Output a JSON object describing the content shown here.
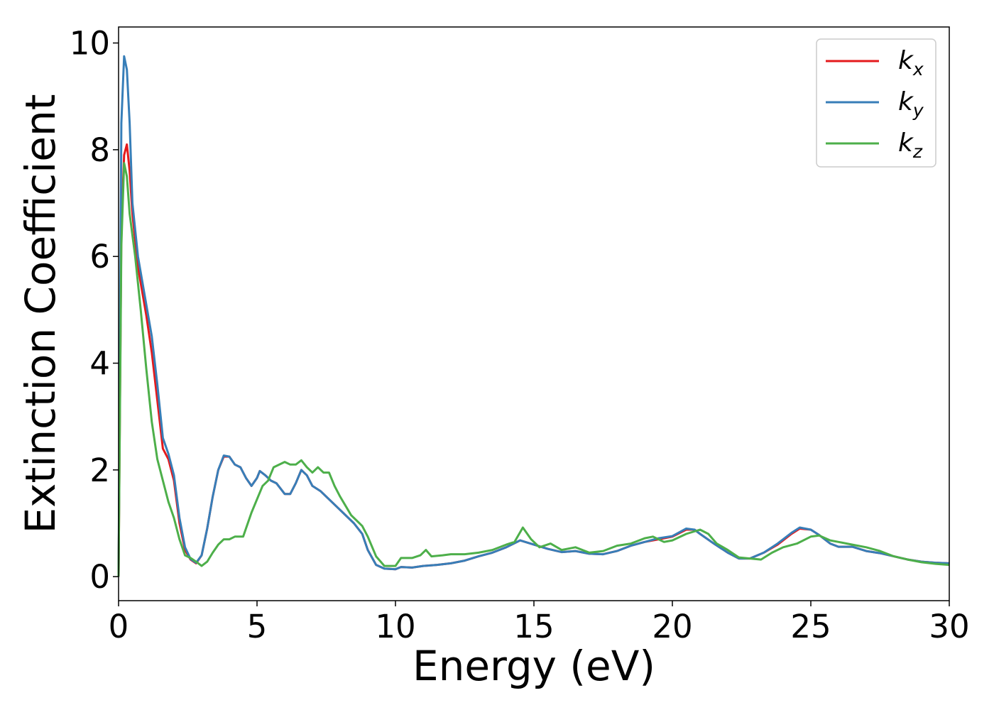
{
  "chart_data": {
    "type": "line",
    "xlabel": "Energy (eV)",
    "ylabel": "Extinction Coefficient",
    "xlim": [
      0,
      30
    ],
    "ylim": [
      -0.45,
      10.3
    ],
    "xticks": [
      0,
      5,
      10,
      15,
      20,
      25,
      30
    ],
    "yticks": [
      0,
      2,
      4,
      6,
      8,
      10
    ],
    "grid": false,
    "legend_position": "top-right",
    "series": [
      {
        "name": "k_x",
        "base": "k",
        "sub": "x",
        "color": "#e41a1c",
        "points": [
          [
            0,
            0
          ],
          [
            0.1,
            6.5
          ],
          [
            0.2,
            7.9
          ],
          [
            0.3,
            8.1
          ],
          [
            0.4,
            7.6
          ],
          [
            0.5,
            6.8
          ],
          [
            0.7,
            5.8
          ],
          [
            1.0,
            4.9
          ],
          [
            1.2,
            4.2
          ],
          [
            1.4,
            3.3
          ],
          [
            1.6,
            2.4
          ],
          [
            1.8,
            2.2
          ],
          [
            2.0,
            1.8
          ],
          [
            2.2,
            1.0
          ],
          [
            2.4,
            0.5
          ],
          [
            2.6,
            0.32
          ],
          [
            2.8,
            0.25
          ],
          [
            3.0,
            0.4
          ],
          [
            3.2,
            0.9
          ],
          [
            3.4,
            1.5
          ],
          [
            3.6,
            2.0
          ],
          [
            3.8,
            2.25
          ],
          [
            4.0,
            2.25
          ],
          [
            4.2,
            2.1
          ],
          [
            4.4,
            2.05
          ],
          [
            4.6,
            1.85
          ],
          [
            4.8,
            1.7
          ],
          [
            5.0,
            1.85
          ],
          [
            5.1,
            1.98
          ],
          [
            5.3,
            1.9
          ],
          [
            5.5,
            1.8
          ],
          [
            5.7,
            1.75
          ],
          [
            6.0,
            1.55
          ],
          [
            6.2,
            1.55
          ],
          [
            6.4,
            1.75
          ],
          [
            6.6,
            2.0
          ],
          [
            6.8,
            1.9
          ],
          [
            7.0,
            1.7
          ],
          [
            7.3,
            1.6
          ],
          [
            7.6,
            1.45
          ],
          [
            8.0,
            1.25
          ],
          [
            8.5,
            1.0
          ],
          [
            8.8,
            0.8
          ],
          [
            9.0,
            0.5
          ],
          [
            9.3,
            0.22
          ],
          [
            9.6,
            0.15
          ],
          [
            10.0,
            0.14
          ],
          [
            10.2,
            0.18
          ],
          [
            10.6,
            0.17
          ],
          [
            11.0,
            0.2
          ],
          [
            11.5,
            0.22
          ],
          [
            12.0,
            0.25
          ],
          [
            12.5,
            0.3
          ],
          [
            13.0,
            0.38
          ],
          [
            13.5,
            0.45
          ],
          [
            14.0,
            0.55
          ],
          [
            14.5,
            0.68
          ],
          [
            15.0,
            0.6
          ],
          [
            15.5,
            0.52
          ],
          [
            16.0,
            0.46
          ],
          [
            16.5,
            0.48
          ],
          [
            17.0,
            0.43
          ],
          [
            17.5,
            0.42
          ],
          [
            18.0,
            0.48
          ],
          [
            18.5,
            0.58
          ],
          [
            19.0,
            0.65
          ],
          [
            19.5,
            0.7
          ],
          [
            20.0,
            0.75
          ],
          [
            20.5,
            0.88
          ],
          [
            20.8,
            0.88
          ],
          [
            21.0,
            0.8
          ],
          [
            21.5,
            0.62
          ],
          [
            22.0,
            0.45
          ],
          [
            22.4,
            0.34
          ],
          [
            22.8,
            0.34
          ],
          [
            23.3,
            0.45
          ],
          [
            23.8,
            0.6
          ],
          [
            24.3,
            0.8
          ],
          [
            24.6,
            0.9
          ],
          [
            25.0,
            0.88
          ],
          [
            25.3,
            0.78
          ],
          [
            25.7,
            0.62
          ],
          [
            26.0,
            0.56
          ],
          [
            26.5,
            0.56
          ],
          [
            27.0,
            0.48
          ],
          [
            27.5,
            0.44
          ],
          [
            28.0,
            0.38
          ],
          [
            28.5,
            0.32
          ],
          [
            29.0,
            0.28
          ],
          [
            29.5,
            0.26
          ],
          [
            30.0,
            0.25
          ]
        ]
      },
      {
        "name": "k_y",
        "base": "k",
        "sub": "y",
        "color": "#377eb8",
        "points": [
          [
            0,
            0
          ],
          [
            0.1,
            8.5
          ],
          [
            0.2,
            9.75
          ],
          [
            0.3,
            9.5
          ],
          [
            0.4,
            8.5
          ],
          [
            0.5,
            7.0
          ],
          [
            0.7,
            6.0
          ],
          [
            1.0,
            5.1
          ],
          [
            1.2,
            4.5
          ],
          [
            1.4,
            3.6
          ],
          [
            1.6,
            2.6
          ],
          [
            1.8,
            2.3
          ],
          [
            2.0,
            1.9
          ],
          [
            2.2,
            1.1
          ],
          [
            2.4,
            0.55
          ],
          [
            2.6,
            0.33
          ],
          [
            2.8,
            0.26
          ],
          [
            3.0,
            0.4
          ],
          [
            3.2,
            0.9
          ],
          [
            3.4,
            1.5
          ],
          [
            3.6,
            2.0
          ],
          [
            3.8,
            2.27
          ],
          [
            4.0,
            2.25
          ],
          [
            4.2,
            2.1
          ],
          [
            4.4,
            2.05
          ],
          [
            4.6,
            1.85
          ],
          [
            4.8,
            1.7
          ],
          [
            5.0,
            1.85
          ],
          [
            5.1,
            1.98
          ],
          [
            5.3,
            1.9
          ],
          [
            5.5,
            1.8
          ],
          [
            5.7,
            1.75
          ],
          [
            6.0,
            1.55
          ],
          [
            6.2,
            1.55
          ],
          [
            6.4,
            1.75
          ],
          [
            6.6,
            2.0
          ],
          [
            6.8,
            1.9
          ],
          [
            7.0,
            1.7
          ],
          [
            7.3,
            1.6
          ],
          [
            7.6,
            1.45
          ],
          [
            8.0,
            1.25
          ],
          [
            8.5,
            1.0
          ],
          [
            8.8,
            0.8
          ],
          [
            9.0,
            0.5
          ],
          [
            9.3,
            0.22
          ],
          [
            9.6,
            0.15
          ],
          [
            10.0,
            0.14
          ],
          [
            10.2,
            0.18
          ],
          [
            10.6,
            0.17
          ],
          [
            11.0,
            0.2
          ],
          [
            11.5,
            0.22
          ],
          [
            12.0,
            0.25
          ],
          [
            12.5,
            0.3
          ],
          [
            13.0,
            0.38
          ],
          [
            13.5,
            0.45
          ],
          [
            14.0,
            0.55
          ],
          [
            14.5,
            0.68
          ],
          [
            15.0,
            0.6
          ],
          [
            15.5,
            0.52
          ],
          [
            16.0,
            0.46
          ],
          [
            16.5,
            0.48
          ],
          [
            17.0,
            0.43
          ],
          [
            17.5,
            0.42
          ],
          [
            18.0,
            0.48
          ],
          [
            18.5,
            0.58
          ],
          [
            19.0,
            0.65
          ],
          [
            19.5,
            0.72
          ],
          [
            20.0,
            0.76
          ],
          [
            20.5,
            0.9
          ],
          [
            20.8,
            0.88
          ],
          [
            21.0,
            0.8
          ],
          [
            21.5,
            0.62
          ],
          [
            22.0,
            0.45
          ],
          [
            22.4,
            0.34
          ],
          [
            22.8,
            0.34
          ],
          [
            23.3,
            0.45
          ],
          [
            23.8,
            0.62
          ],
          [
            24.3,
            0.82
          ],
          [
            24.6,
            0.92
          ],
          [
            25.0,
            0.88
          ],
          [
            25.3,
            0.78
          ],
          [
            25.7,
            0.62
          ],
          [
            26.0,
            0.56
          ],
          [
            26.5,
            0.56
          ],
          [
            27.0,
            0.48
          ],
          [
            27.5,
            0.44
          ],
          [
            28.0,
            0.38
          ],
          [
            28.5,
            0.32
          ],
          [
            29.0,
            0.28
          ],
          [
            29.5,
            0.26
          ],
          [
            30.0,
            0.25
          ]
        ]
      },
      {
        "name": "k_z",
        "base": "k",
        "sub": "z",
        "color": "#4daf4a",
        "points": [
          [
            0,
            0
          ],
          [
            0.1,
            6.2
          ],
          [
            0.2,
            7.75
          ],
          [
            0.3,
            7.5
          ],
          [
            0.4,
            6.8
          ],
          [
            0.6,
            6.0
          ],
          [
            0.8,
            5.0
          ],
          [
            1.0,
            3.9
          ],
          [
            1.2,
            2.9
          ],
          [
            1.4,
            2.2
          ],
          [
            1.6,
            1.8
          ],
          [
            1.8,
            1.4
          ],
          [
            2.0,
            1.1
          ],
          [
            2.2,
            0.7
          ],
          [
            2.4,
            0.4
          ],
          [
            2.6,
            0.35
          ],
          [
            2.8,
            0.28
          ],
          [
            3.0,
            0.2
          ],
          [
            3.2,
            0.28
          ],
          [
            3.4,
            0.45
          ],
          [
            3.6,
            0.6
          ],
          [
            3.8,
            0.7
          ],
          [
            4.0,
            0.7
          ],
          [
            4.2,
            0.75
          ],
          [
            4.5,
            0.75
          ],
          [
            4.8,
            1.2
          ],
          [
            5.0,
            1.45
          ],
          [
            5.2,
            1.7
          ],
          [
            5.4,
            1.8
          ],
          [
            5.6,
            2.05
          ],
          [
            6.0,
            2.15
          ],
          [
            6.2,
            2.1
          ],
          [
            6.4,
            2.1
          ],
          [
            6.6,
            2.18
          ],
          [
            6.8,
            2.05
          ],
          [
            7.0,
            1.95
          ],
          [
            7.2,
            2.05
          ],
          [
            7.4,
            1.95
          ],
          [
            7.6,
            1.95
          ],
          [
            7.8,
            1.7
          ],
          [
            8.0,
            1.5
          ],
          [
            8.4,
            1.15
          ],
          [
            8.8,
            0.95
          ],
          [
            9.0,
            0.75
          ],
          [
            9.3,
            0.38
          ],
          [
            9.6,
            0.2
          ],
          [
            10.0,
            0.2
          ],
          [
            10.2,
            0.35
          ],
          [
            10.6,
            0.35
          ],
          [
            10.9,
            0.4
          ],
          [
            11.1,
            0.5
          ],
          [
            11.3,
            0.38
          ],
          [
            11.7,
            0.4
          ],
          [
            12.0,
            0.42
          ],
          [
            12.5,
            0.42
          ],
          [
            13.0,
            0.45
          ],
          [
            13.5,
            0.5
          ],
          [
            14.0,
            0.6
          ],
          [
            14.3,
            0.65
          ],
          [
            14.6,
            0.92
          ],
          [
            14.9,
            0.7
          ],
          [
            15.2,
            0.55
          ],
          [
            15.6,
            0.62
          ],
          [
            16.0,
            0.5
          ],
          [
            16.5,
            0.55
          ],
          [
            17.0,
            0.45
          ],
          [
            17.5,
            0.48
          ],
          [
            18.0,
            0.58
          ],
          [
            18.5,
            0.62
          ],
          [
            19.0,
            0.72
          ],
          [
            19.3,
            0.75
          ],
          [
            19.7,
            0.65
          ],
          [
            20.0,
            0.68
          ],
          [
            20.5,
            0.8
          ],
          [
            21.0,
            0.88
          ],
          [
            21.3,
            0.8
          ],
          [
            21.6,
            0.62
          ],
          [
            22.0,
            0.5
          ],
          [
            22.4,
            0.36
          ],
          [
            22.8,
            0.34
          ],
          [
            23.2,
            0.32
          ],
          [
            23.6,
            0.45
          ],
          [
            24.0,
            0.55
          ],
          [
            24.5,
            0.62
          ],
          [
            25.0,
            0.75
          ],
          [
            25.3,
            0.77
          ],
          [
            25.7,
            0.68
          ],
          [
            26.0,
            0.65
          ],
          [
            26.5,
            0.6
          ],
          [
            27.0,
            0.55
          ],
          [
            27.5,
            0.48
          ],
          [
            28.0,
            0.38
          ],
          [
            28.5,
            0.32
          ],
          [
            29.0,
            0.27
          ],
          [
            29.5,
            0.24
          ],
          [
            30.0,
            0.22
          ]
        ]
      }
    ]
  }
}
